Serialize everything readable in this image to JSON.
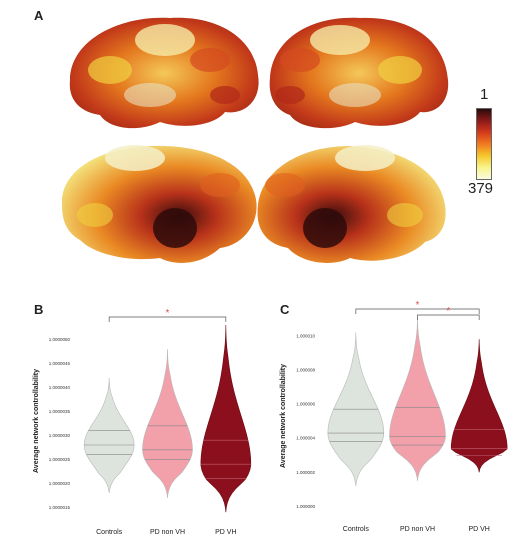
{
  "figure": {
    "panel_a_label": "A",
    "panel_b_label": "B",
    "panel_c_label": "C",
    "colorbar": {
      "top_label": "1",
      "bottom_label": "379",
      "colors": [
        "#2a0a0a",
        "#8b1a1a",
        "#d43a1a",
        "#f07a20",
        "#f5c72a",
        "#f8f48a",
        "#fbfbe0"
      ]
    },
    "brain_views": [
      "lateral-left",
      "lateral-right",
      "medial-left",
      "medial-right"
    ]
  },
  "chart_data": [
    {
      "type": "violin",
      "panel": "B",
      "title": "",
      "ylabel": "Average network controllability",
      "categories": [
        "Controls",
        "PD non VH",
        "PD VH"
      ],
      "yticks": [
        "1.0000015",
        "1.0000020",
        "1.0000025",
        "1.0000030",
        "1.0000035",
        "1.0000040",
        "1.0000045",
        "1.0000050"
      ],
      "ylim": [
        1.0000013,
        1.0000053
      ],
      "colors": [
        "#dde3dd",
        "#f2a0aa",
        "#8c0f1d"
      ],
      "series": [
        {
          "name": "Controls",
          "min": 1.0000018,
          "max": 1.0000042,
          "median": 1.0000028,
          "q1": 1.0000026,
          "q3": 1.0000031,
          "mode": 1.0000028
        },
        {
          "name": "PD non VH",
          "min": 1.0000017,
          "max": 1.0000048,
          "median": 1.0000027,
          "q1": 1.0000025,
          "q3": 1.0000032,
          "mode": 1.0000027
        },
        {
          "name": "PD VH",
          "min": 1.0000014,
          "max": 1.0000053,
          "median": 1.0000024,
          "q1": 1.0000021,
          "q3": 1.0000029,
          "mode": 1.0000024
        }
      ],
      "significance": [
        {
          "from": "Controls",
          "to": "PD VH",
          "label": "*"
        }
      ]
    },
    {
      "type": "violin",
      "panel": "C",
      "title": "",
      "ylabel": "Average network controllability",
      "categories": [
        "Controls",
        "PD non VH",
        "PD VH"
      ],
      "yticks": [
        "1.000000",
        "1.000002",
        "1.000004",
        "1.000006",
        "1.000008",
        "1.000010"
      ],
      "ylim": [
        0.9999995,
        1.0000111
      ],
      "colors": [
        "#dde3dd",
        "#f2a0aa",
        "#8c0f1d"
      ],
      "series": [
        {
          "name": "Controls",
          "min": 1.0000012,
          "max": 1.0000102,
          "median": 1.0000043,
          "q1": 1.0000038,
          "q3": 1.0000057,
          "mode": 1.0000043
        },
        {
          "name": "PD non VH",
          "min": 1.0000015,
          "max": 1.0000111,
          "median": 1.0000041,
          "q1": 1.0000036,
          "q3": 1.0000058,
          "mode": 1.0000041
        },
        {
          "name": "PD VH",
          "min": 1.000002,
          "max": 1.0000098,
          "median": 1.0000034,
          "q1": 1.000003,
          "q3": 1.0000045,
          "mode": 1.0000034
        }
      ],
      "significance": [
        {
          "from": "Controls",
          "to": "PD VH",
          "label": "*"
        },
        {
          "from": "PD non VH",
          "to": "PD VH",
          "label": "*"
        }
      ]
    }
  ]
}
